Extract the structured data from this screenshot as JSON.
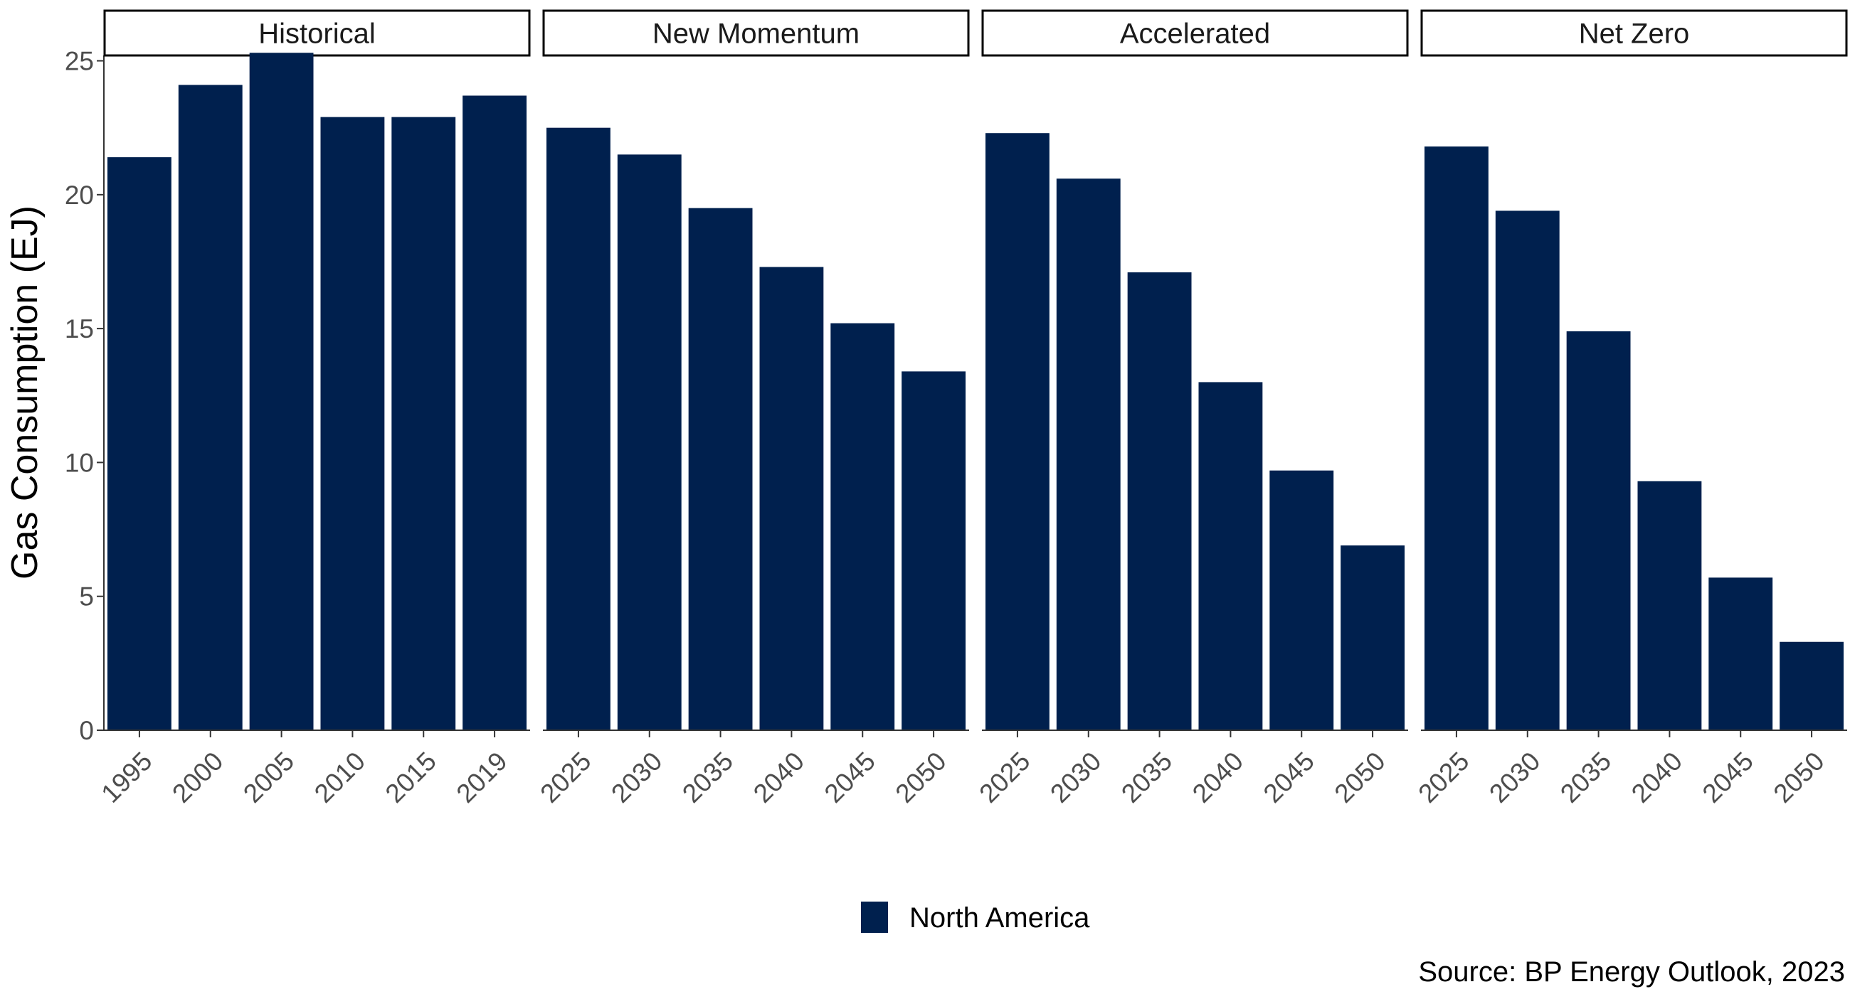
{
  "chart_data": {
    "type": "bar",
    "ylabel": "Gas Consumption (EJ)",
    "ylim": [
      0,
      25.2
    ],
    "yticks": [
      0,
      5,
      10,
      15,
      20,
      25
    ],
    "grid": false,
    "legend": {
      "placement": "bottom",
      "entries": [
        {
          "name": "North America",
          "color": "#00204e"
        }
      ]
    },
    "caption": "Source: BP Energy Outlook, 2023",
    "facets": [
      {
        "label": "Historical",
        "categories": [
          "1995",
          "2000",
          "2005",
          "2010",
          "2015",
          "2019"
        ],
        "series": [
          {
            "name": "North America",
            "values": [
              21.4,
              24.1,
              25.3,
              22.9,
              22.9,
              23.7
            ]
          }
        ]
      },
      {
        "label": "New Momentum",
        "categories": [
          "2025",
          "2030",
          "2035",
          "2040",
          "2045",
          "2050"
        ],
        "series": [
          {
            "name": "North America",
            "values": [
              22.5,
              21.5,
              19.5,
              17.3,
              15.2,
              13.4
            ]
          }
        ]
      },
      {
        "label": "Accelerated",
        "categories": [
          "2025",
          "2030",
          "2035",
          "2040",
          "2045",
          "2050"
        ],
        "series": [
          {
            "name": "North America",
            "values": [
              22.3,
              20.6,
              17.1,
              13.0,
              9.7,
              6.9
            ]
          }
        ]
      },
      {
        "label": "Net Zero",
        "categories": [
          "2025",
          "2030",
          "2035",
          "2040",
          "2045",
          "2050"
        ],
        "series": [
          {
            "name": "North America",
            "values": [
              21.8,
              19.4,
              14.9,
              9.3,
              5.7,
              3.3
            ]
          }
        ]
      }
    ]
  },
  "colors": {
    "bar": "#00204e",
    "axis": "#333333",
    "strip_border": "#000000",
    "strip_fill": "#ffffff"
  }
}
